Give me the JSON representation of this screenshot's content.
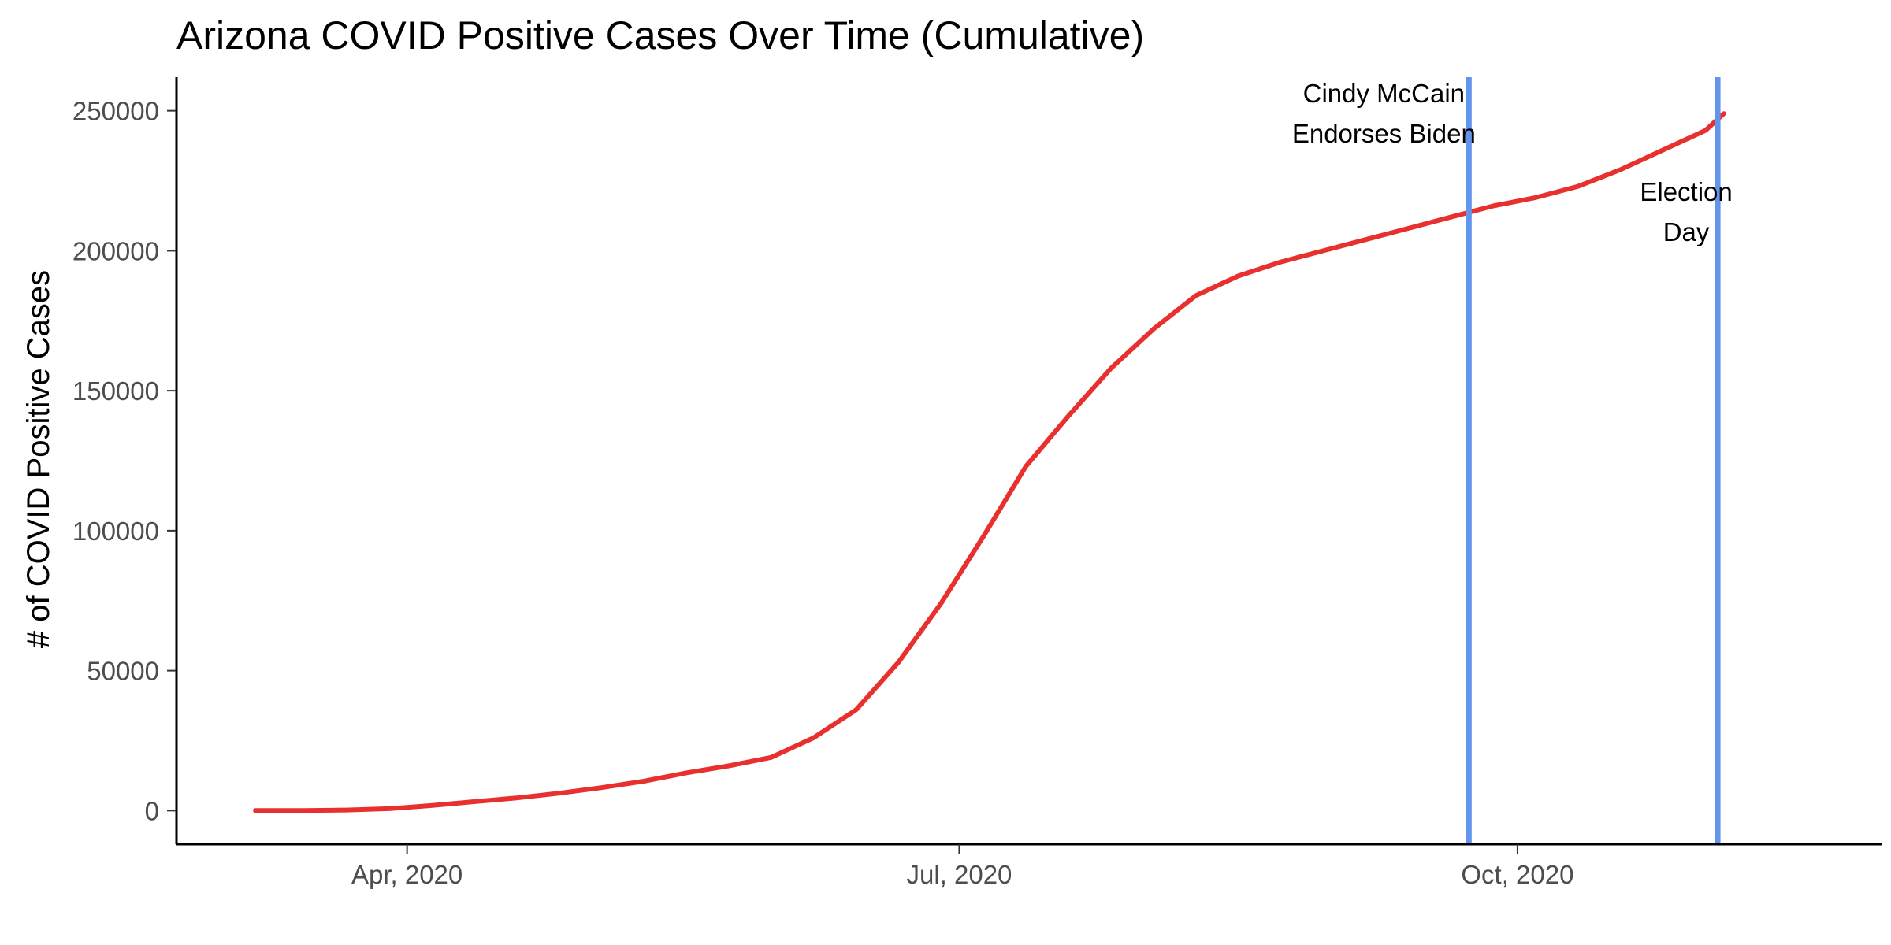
{
  "chart_data": {
    "type": "line",
    "title": "Arizona COVID Positive Cases Over Time (Cumulative)",
    "xlabel": "",
    "ylabel": "# of COVID Positive Cases",
    "xlim": [
      "2020-02-23",
      "2020-11-30"
    ],
    "ylim": [
      -12000,
      262000
    ],
    "x_ticks": [
      {
        "date": "2020-04-01",
        "label": "Apr, 2020"
      },
      {
        "date": "2020-07-01",
        "label": "Jul, 2020"
      },
      {
        "date": "2020-10-01",
        "label": "Oct, 2020"
      }
    ],
    "y_ticks": [
      {
        "value": 0,
        "label": "0"
      },
      {
        "value": 50000,
        "label": "50000"
      },
      {
        "value": 100000,
        "label": "100000"
      },
      {
        "value": 150000,
        "label": "150000"
      },
      {
        "value": 200000,
        "label": "200000"
      },
      {
        "value": 250000,
        "label": "250000"
      }
    ],
    "grid": false,
    "legend": "none",
    "series": [
      {
        "color": "#e8302f",
        "points": [
          [
            "2020-03-07",
            0
          ],
          [
            "2020-03-15",
            50
          ],
          [
            "2020-03-22",
            200
          ],
          [
            "2020-03-29",
            700
          ],
          [
            "2020-04-05",
            1800
          ],
          [
            "2020-04-12",
            3200
          ],
          [
            "2020-04-19",
            4500
          ],
          [
            "2020-04-26",
            6200
          ],
          [
            "2020-05-03",
            8200
          ],
          [
            "2020-05-10",
            10500
          ],
          [
            "2020-05-17",
            13500
          ],
          [
            "2020-05-24",
            16000
          ],
          [
            "2020-05-31",
            19000
          ],
          [
            "2020-06-07",
            26000
          ],
          [
            "2020-06-14",
            36000
          ],
          [
            "2020-06-21",
            53000
          ],
          [
            "2020-06-28",
            74000
          ],
          [
            "2020-07-05",
            98000
          ],
          [
            "2020-07-12",
            123000
          ],
          [
            "2020-07-19",
            141000
          ],
          [
            "2020-07-26",
            158000
          ],
          [
            "2020-08-02",
            172000
          ],
          [
            "2020-08-09",
            184000
          ],
          [
            "2020-08-16",
            191000
          ],
          [
            "2020-08-23",
            196000
          ],
          [
            "2020-08-30",
            200000
          ],
          [
            "2020-09-06",
            204000
          ],
          [
            "2020-09-13",
            208000
          ],
          [
            "2020-09-20",
            212000
          ],
          [
            "2020-09-27",
            216000
          ],
          [
            "2020-10-04",
            219000
          ],
          [
            "2020-10-11",
            223000
          ],
          [
            "2020-10-18",
            229000
          ],
          [
            "2020-10-25",
            236000
          ],
          [
            "2020-11-01",
            243000
          ],
          [
            "2020-11-04",
            249000
          ]
        ]
      }
    ],
    "vlines": [
      {
        "date": "2020-09-23",
        "color": "#6495ed",
        "label_lines": [
          "Cindy McCain",
          "Endorses Biden"
        ]
      },
      {
        "date": "2020-11-03",
        "color": "#6495ed",
        "label_lines": [
          "Election",
          "Day"
        ]
      }
    ]
  }
}
